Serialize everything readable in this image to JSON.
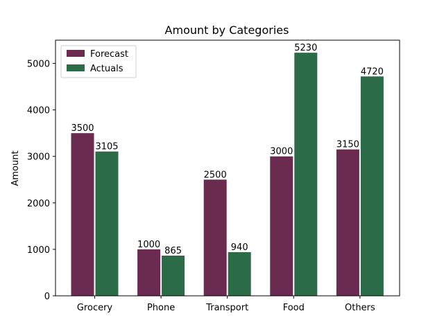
{
  "chart_data": {
    "type": "bar",
    "title": "Amount by Categories",
    "xlabel": "",
    "ylabel": "Amount",
    "categories": [
      "Grocery",
      "Phone",
      "Transport",
      "Food",
      "Others"
    ],
    "series": [
      {
        "name": "Forecast",
        "values": [
          3500,
          1000,
          2500,
          3000,
          3150
        ],
        "color": "#6b2b50"
      },
      {
        "name": "Actuals",
        "values": [
          3105,
          865,
          940,
          5230,
          4720
        ],
        "color": "#2b6b47"
      }
    ],
    "ylim": [
      0,
      5500
    ],
    "yticks": [
      0,
      1000,
      2000,
      3000,
      4000,
      5000
    ],
    "legend_position": "top-left",
    "grid": false,
    "data_labels": true
  }
}
